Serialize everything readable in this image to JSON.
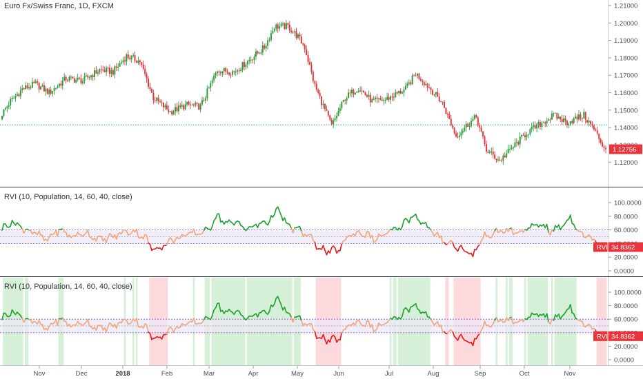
{
  "panes": {
    "price_title": "Euro Fx/Swiss Franc, 1D, FXCM",
    "rvi1_title": "RVI (10, Population, 14, 60, 40, close)",
    "rvi2_title": "RVI (10, Population, 14, 60, 40, close)"
  },
  "badges": {
    "price_last": "1.12756",
    "rvi1_label": "RVI",
    "rvi1_value": "34.8362",
    "rvi2_label": "RVI",
    "rvi2_value": "34.8362"
  },
  "colors": {
    "up": "#26a69a",
    "candle_up": "#2e9c3a",
    "candle_down": "#e0393e",
    "rvi_high": "#1e9e2d",
    "rvi_mid": "#f0a57a",
    "rvi_low": "#e8161c",
    "band_fill": "#ede7f6",
    "bg_green": "#d6f0d8",
    "bg_red": "#fbd9dc",
    "badge_red": "#e8353b"
  },
  "chart_data": [
    {
      "type": "candlestick",
      "title": "Euro Fx/Swiss Franc, 1D, FXCM",
      "y_ticks": [
        "1.21000",
        "1.20000",
        "1.19000",
        "1.18000",
        "1.17000",
        "1.16000",
        "1.15000",
        "1.14000",
        "1.13000",
        "1.12000"
      ],
      "ylim": [
        1.115,
        1.213
      ],
      "x_ticks": [
        "Nov",
        "Dec",
        "2018",
        "Feb",
        "Mar",
        "Apr",
        "May",
        "Jun",
        "Jul",
        "Aug",
        "Sep",
        "Oct",
        "Nov"
      ],
      "reference_line": 1.1415,
      "close_anchors": [
        [
          0,
          1.148
        ],
        [
          5,
          1.155
        ],
        [
          12,
          1.162
        ],
        [
          20,
          1.165
        ],
        [
          28,
          1.16
        ],
        [
          38,
          1.168
        ],
        [
          48,
          1.167
        ],
        [
          58,
          1.173
        ],
        [
          66,
          1.172
        ],
        [
          74,
          1.181
        ],
        [
          82,
          1.178
        ],
        [
          90,
          1.157
        ],
        [
          100,
          1.149
        ],
        [
          110,
          1.153
        ],
        [
          118,
          1.152
        ],
        [
          128,
          1.173
        ],
        [
          138,
          1.172
        ],
        [
          146,
          1.178
        ],
        [
          156,
          1.186
        ],
        [
          162,
          1.198
        ],
        [
          170,
          1.198
        ],
        [
          176,
          1.192
        ],
        [
          180,
          1.186
        ],
        [
          186,
          1.164
        ],
        [
          196,
          1.141
        ],
        [
          204,
          1.157
        ],
        [
          212,
          1.163
        ],
        [
          220,
          1.155
        ],
        [
          228,
          1.156
        ],
        [
          240,
          1.162
        ],
        [
          246,
          1.171
        ],
        [
          254,
          1.163
        ],
        [
          262,
          1.154
        ],
        [
          270,
          1.135
        ],
        [
          276,
          1.141
        ],
        [
          282,
          1.146
        ],
        [
          288,
          1.127
        ],
        [
          296,
          1.121
        ],
        [
          304,
          1.129
        ],
        [
          312,
          1.137
        ],
        [
          320,
          1.142
        ],
        [
          328,
          1.147
        ],
        [
          336,
          1.143
        ],
        [
          346,
          1.147
        ],
        [
          352,
          1.139
        ],
        [
          358,
          1.1285
        ]
      ],
      "last": 1.12756
    },
    {
      "type": "line",
      "title": "RVI (10, Population, 14, 60, 40, close)",
      "y_ticks": [
        "100.0000",
        "80.0000",
        "60.0000",
        "40.0000",
        "20.0000",
        "0.0000"
      ],
      "ylim": [
        0,
        100
      ],
      "upper_band": 60,
      "middle_line": 50,
      "lower_band": 40,
      "anchors": [
        [
          0,
          62
        ],
        [
          6,
          72
        ],
        [
          12,
          63
        ],
        [
          20,
          55
        ],
        [
          26,
          45
        ],
        [
          34,
          60
        ],
        [
          42,
          50
        ],
        [
          50,
          56
        ],
        [
          58,
          45
        ],
        [
          66,
          50
        ],
        [
          74,
          58
        ],
        [
          80,
          57
        ],
        [
          86,
          46
        ],
        [
          90,
          30
        ],
        [
          96,
          38
        ],
        [
          104,
          48
        ],
        [
          114,
          55
        ],
        [
          122,
          58
        ],
        [
          128,
          82
        ],
        [
          134,
          68
        ],
        [
          140,
          72
        ],
        [
          146,
          60
        ],
        [
          152,
          68
        ],
        [
          158,
          72
        ],
        [
          164,
          90
        ],
        [
          170,
          65
        ],
        [
          176,
          60
        ],
        [
          182,
          52
        ],
        [
          188,
          35
        ],
        [
          194,
          28
        ],
        [
          200,
          30
        ],
        [
          206,
          52
        ],
        [
          214,
          56
        ],
        [
          222,
          46
        ],
        [
          228,
          54
        ],
        [
          236,
          62
        ],
        [
          244,
          82
        ],
        [
          250,
          72
        ],
        [
          256,
          55
        ],
        [
          262,
          46
        ],
        [
          268,
          38
        ],
        [
          274,
          32
        ],
        [
          280,
          22
        ],
        [
          286,
          50
        ],
        [
          294,
          56
        ],
        [
          300,
          60
        ],
        [
          306,
          55
        ],
        [
          314,
          62
        ],
        [
          320,
          70
        ],
        [
          326,
          58
        ],
        [
          332,
          64
        ],
        [
          338,
          78
        ],
        [
          344,
          56
        ],
        [
          350,
          48
        ],
        [
          356,
          38
        ],
        [
          358,
          34.8362
        ]
      ],
      "last": 34.8362
    },
    {
      "type": "line",
      "title": "RVI (10, Population, 14, 60, 40, close)",
      "y_ticks": [
        "100.0000",
        "80.0000",
        "60.0000",
        "40.0000",
        "20.0000",
        "0.0000"
      ],
      "ylim": [
        0,
        100
      ],
      "upper_band": 60,
      "middle_line": 50,
      "lower_band": 40,
      "background": "green above 60, red below 40",
      "last": 34.8362
    }
  ]
}
